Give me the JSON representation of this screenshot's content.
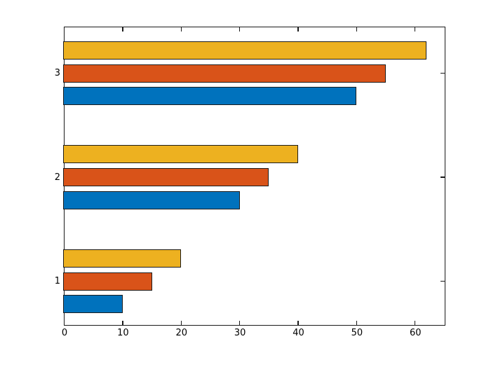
{
  "chart_data": {
    "type": "bar",
    "orientation": "horizontal",
    "title": "",
    "xlabel": "",
    "ylabel": "",
    "grid": false,
    "legend": null,
    "categories": [
      "1",
      "2",
      "3"
    ],
    "series": [
      {
        "name": "blue",
        "color": "#0072BD",
        "values": [
          10,
          30,
          50
        ]
      },
      {
        "name": "orange",
        "color": "#D95319",
        "values": [
          15,
          35,
          55
        ]
      },
      {
        "name": "yellow",
        "color": "#EDB120",
        "values": [
          20,
          40,
          62
        ]
      }
    ],
    "xlim": [
      0,
      65
    ],
    "xticks": [
      0,
      10,
      20,
      30,
      40,
      50,
      60
    ],
    "xtick_labels": [
      "0",
      "10",
      "20",
      "30",
      "40",
      "50",
      "60"
    ],
    "ytick_labels": [
      "1",
      "2",
      "3"
    ],
    "bar_edge_color": "#1c1c1c",
    "axis_color": "#1a1a1a",
    "background": "#FFFFFF"
  }
}
